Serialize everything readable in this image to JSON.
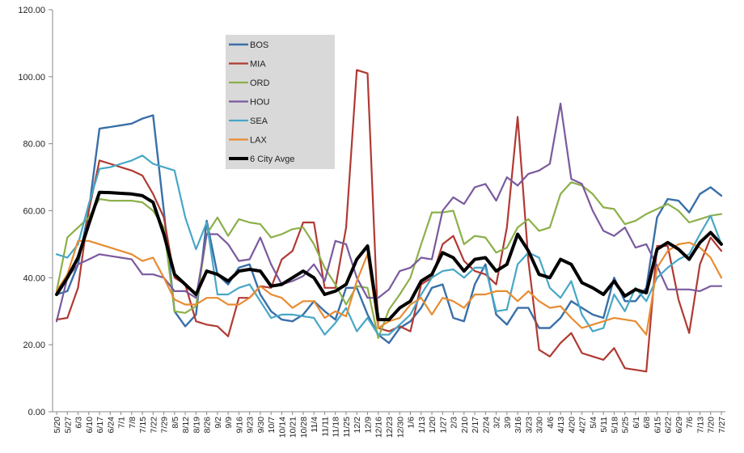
{
  "chart_data": {
    "type": "line",
    "title": "",
    "xlabel": "",
    "ylabel": "",
    "ylim": [
      0,
      120
    ],
    "yticks": [
      "0.00",
      "20.00",
      "40.00",
      "60.00",
      "80.00",
      "100.00",
      "120.00"
    ],
    "grid": false,
    "legend_position": "top-left inside plot",
    "x": [
      "5/20",
      "5/27",
      "6/3",
      "6/10",
      "6/17",
      "6/24",
      "7/1",
      "7/8",
      "7/15",
      "7/22",
      "7/29",
      "8/5",
      "8/12",
      "8/19",
      "8/26",
      "9/2",
      "9/9",
      "9/16",
      "9/23",
      "9/30",
      "10/7",
      "10/14",
      "10/21",
      "10/28",
      "11/4",
      "11/11",
      "11/18",
      "11/25",
      "12/2",
      "12/9",
      "12/16",
      "12/23",
      "12/30",
      "1/6",
      "1/13",
      "1/20",
      "1/27",
      "2/3",
      "2/10",
      "2/17",
      "2/24",
      "3/2",
      "3/9",
      "3/16",
      "3/23",
      "3/30",
      "4/6",
      "4/13",
      "4/20",
      "4/27",
      "5/4",
      "5/11",
      "5/18",
      "5/25",
      "6/1",
      "6/8",
      "6/15",
      "6/22",
      "6/29",
      "7/6",
      "7/13",
      "7/20",
      "7/27"
    ],
    "series": [
      {
        "name": "BOS",
        "color": "#3A6FA8",
        "width": 2.4,
        "values": [
          35,
          36,
          44,
          60,
          84.5,
          85,
          85.5,
          86,
          87.5,
          88.5,
          60,
          30,
          25.5,
          29,
          57,
          41,
          38,
          43,
          44,
          35,
          30,
          27.5,
          27,
          29,
          33,
          30,
          27.5,
          37,
          37,
          29,
          23,
          20.5,
          25,
          27,
          31,
          37,
          38,
          28,
          27,
          38,
          44,
          29,
          26,
          31,
          31,
          25,
          25,
          28,
          33,
          31,
          29,
          28,
          40,
          33,
          33,
          37,
          58,
          63.5,
          63,
          59.5,
          65,
          67,
          64.5
        ]
      },
      {
        "name": "MIA",
        "color": "#B03A33",
        "width": 2.2,
        "values": [
          27.5,
          28,
          37,
          60,
          75,
          74,
          73,
          72,
          70.5,
          65,
          58,
          40,
          38,
          27,
          26,
          25.5,
          22.5,
          34,
          34,
          37.5,
          37,
          45.5,
          48,
          56.5,
          56.5,
          37,
          37,
          55,
          102,
          101,
          25,
          24,
          25.5,
          24,
          38,
          40,
          50,
          52.5,
          45,
          42,
          41,
          38,
          55,
          88,
          45,
          18.5,
          16.5,
          20.5,
          23.5,
          17.5,
          16.5,
          15.5,
          19,
          13,
          12.5,
          12,
          49.5,
          49.5,
          33.5,
          23.5,
          44,
          52,
          48
        ]
      },
      {
        "name": "ORD",
        "color": "#8CB04A",
        "width": 2.2,
        "values": [
          36,
          52,
          55,
          58,
          63.5,
          63,
          63,
          63,
          62.5,
          60,
          55,
          30,
          29.5,
          31.5,
          53,
          58,
          52.5,
          57.5,
          56.5,
          56,
          52,
          53,
          54.5,
          55,
          50,
          43,
          38,
          32,
          37.5,
          37,
          22,
          30.5,
          35,
          40,
          50,
          59.5,
          59.5,
          60,
          50,
          52.5,
          52,
          47.5,
          49,
          55,
          57.5,
          54,
          55,
          65,
          68.5,
          67.5,
          65,
          61,
          60.5,
          56,
          57,
          59,
          60.5,
          62,
          60,
          56.5,
          57.5,
          58.5,
          59
        ]
      },
      {
        "name": "HOU",
        "color": "#7A5A9E",
        "width": 2.2,
        "values": [
          27,
          40,
          44,
          45.5,
          47,
          46.5,
          46,
          45.5,
          41,
          41,
          40,
          36,
          36,
          34,
          53,
          53,
          50,
          45,
          45.5,
          52,
          44,
          38,
          39,
          40.5,
          44,
          39,
          51,
          50,
          40,
          34,
          34,
          36.5,
          42,
          43,
          46,
          45.5,
          60,
          64,
          62,
          67,
          68,
          63,
          70,
          67.5,
          71,
          72,
          74,
          92,
          69.5,
          68,
          60,
          54,
          52.5,
          55,
          49,
          50,
          43.5,
          36.5,
          36.5,
          36.5,
          36,
          37.5,
          37.5
        ]
      },
      {
        "name": "SEA",
        "color": "#47A7C6",
        "width": 2.2,
        "values": [
          47,
          46,
          50,
          62,
          72.5,
          73,
          74,
          75,
          76.5,
          74,
          73,
          72,
          58,
          48.5,
          56.5,
          35,
          35,
          37,
          38,
          33,
          28,
          29,
          29,
          28.5,
          28,
          23,
          26.5,
          31,
          24,
          28,
          23,
          23,
          26,
          29,
          35,
          40,
          42,
          42.5,
          40,
          43,
          43,
          30,
          30.5,
          44,
          47.5,
          46,
          37,
          34,
          39,
          29,
          24,
          25,
          35,
          30,
          37,
          33,
          40,
          43,
          45.5,
          47,
          53,
          58.5,
          50
        ]
      },
      {
        "name": "LAX",
        "color": "#E78C32",
        "width": 2.2,
        "values": [
          36,
          41,
          51,
          51,
          50,
          49,
          48,
          47,
          45,
          46,
          40,
          33.5,
          32,
          32,
          34,
          34,
          32,
          32,
          34,
          37.5,
          35,
          34,
          31,
          33,
          33,
          28,
          30,
          28.5,
          39,
          47,
          25,
          27,
          28,
          32,
          34,
          29,
          34,
          33,
          31,
          35,
          35,
          36,
          36,
          33,
          36,
          33,
          31,
          31.5,
          28,
          25,
          26,
          27,
          28,
          27.5,
          27,
          23,
          43,
          48,
          50,
          50.5,
          49,
          46,
          40
        ]
      },
      {
        "name": "6 City Avge",
        "color": "#000000",
        "width": 4,
        "values": [
          35,
          40,
          46,
          56,
          65.5,
          65.4,
          65.2,
          65,
          64.5,
          62.5,
          53,
          41,
          38,
          35,
          42,
          41,
          39,
          42,
          42.5,
          42,
          37.5,
          38,
          40,
          42,
          40,
          35,
          36,
          38,
          45.5,
          49.5,
          27.5,
          27.5,
          31,
          33,
          39,
          41,
          47.5,
          46,
          42,
          45.5,
          46,
          42,
          44,
          53,
          48,
          41,
          40,
          45.5,
          44,
          38.5,
          37,
          35,
          39,
          34.5,
          36.5,
          35.5,
          48.5,
          50.5,
          48.5,
          45.5,
          50.5,
          53.5,
          50
        ]
      }
    ]
  }
}
